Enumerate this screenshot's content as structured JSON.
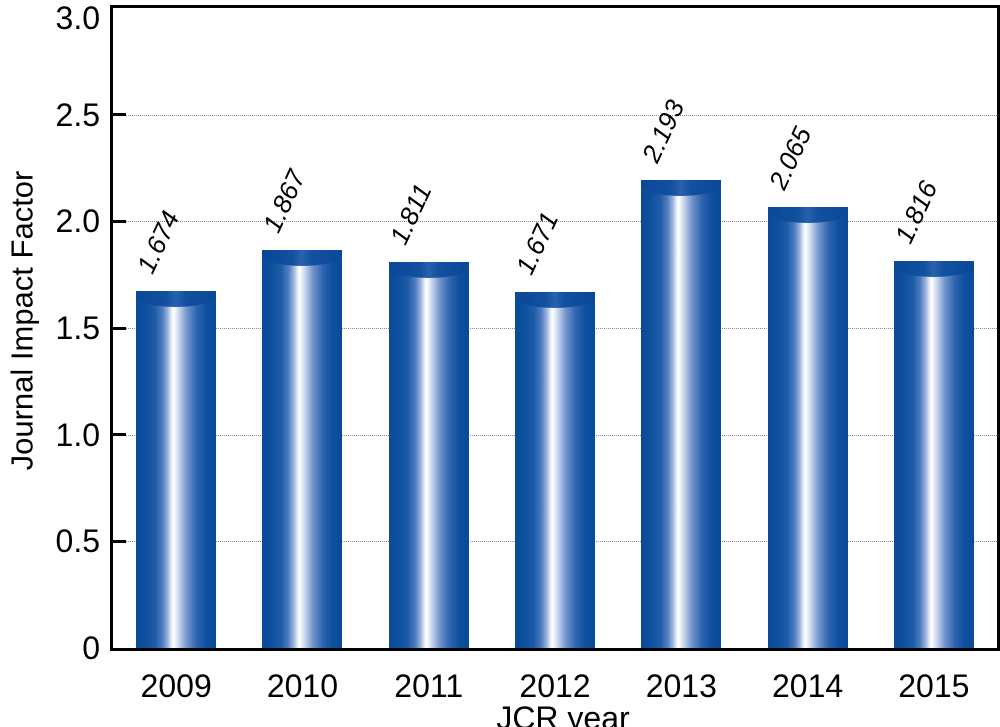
{
  "figure": {
    "background": "#ffffff"
  },
  "chart_data": {
    "type": "bar",
    "categories": [
      "2009",
      "2010",
      "2011",
      "2012",
      "2013",
      "2014",
      "2015"
    ],
    "values": [
      1.674,
      1.867,
      1.811,
      1.671,
      2.193,
      2.065,
      1.816
    ],
    "value_labels": [
      "1.674",
      "1.867",
      "1.811",
      "1.671",
      "2.193",
      "2.065",
      "1.816"
    ],
    "title": "",
    "xlabel": "JCR year",
    "ylabel": "Journal Impact Factor",
    "ylim": [
      0,
      3.0
    ],
    "yticks": [
      0,
      0.5,
      1.0,
      1.5,
      2.0,
      2.5,
      3.0
    ],
    "ytick_labels": [
      "0",
      "0.5",
      "1.0",
      "1.5",
      "2.0",
      "2.5",
      "3.0"
    ],
    "grid": "horizontal-only",
    "legend": "none",
    "value_label_style": "italic, rotated ~65deg above each bar",
    "bar_style": "cylindrical horizontal gradient with dark cap",
    "colors": {
      "bar_dark": "#0a4a99",
      "bar_highlight": "#ffffff",
      "gridline": "#8a8a8a",
      "axis": "#000000",
      "text": "#000000"
    }
  }
}
